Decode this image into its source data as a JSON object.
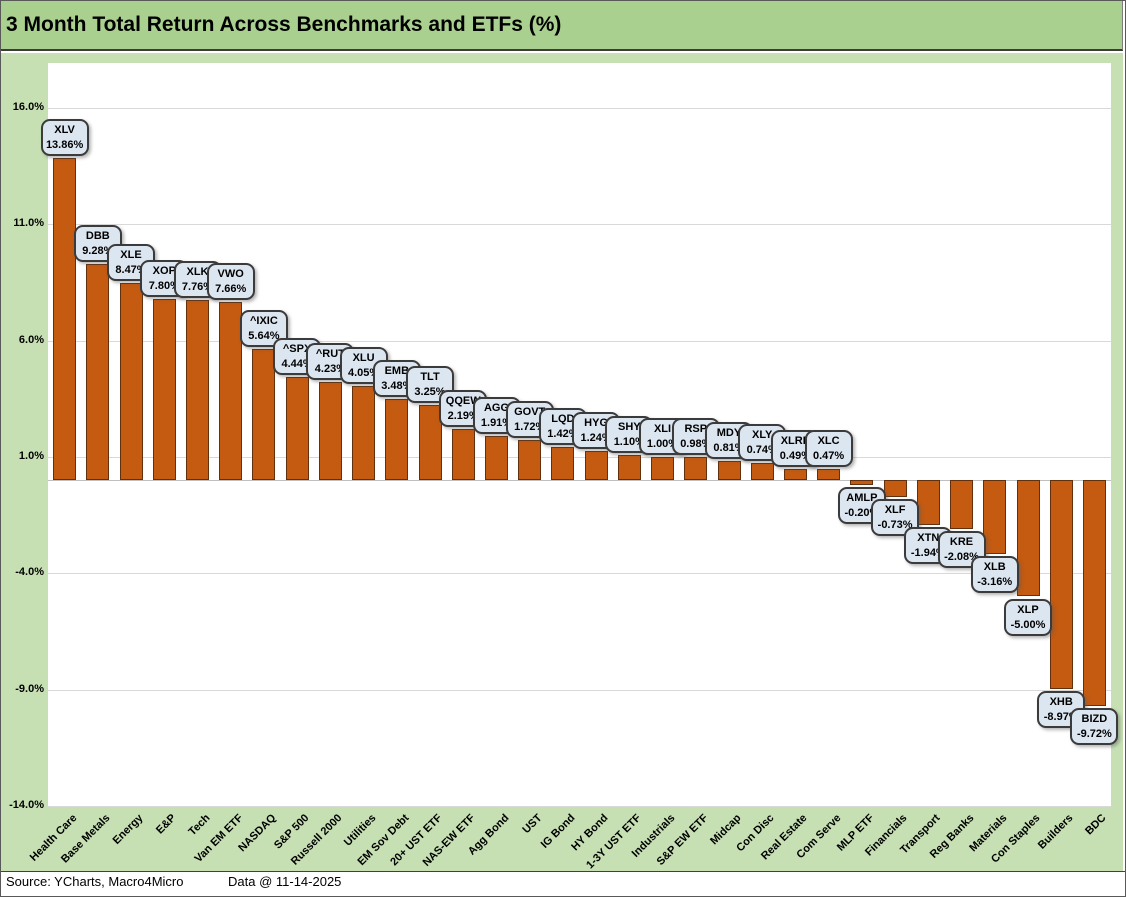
{
  "title": "3 Month Total Return Across Benchmarks and ETFs (%)",
  "footer": {
    "source": "Source: YCharts, Macro4Micro",
    "data_date": "Data @ 11-14-2025"
  },
  "colors": {
    "title_bar_bg": "#A9D08E",
    "chart_bg": "#C6E0B4",
    "plot_bg": "#FFFFFF",
    "bar_fill": "#C55A11",
    "bar_border": "#63300E",
    "callout_fill": "#DCE6F1",
    "callout_border": "#3B3B3B",
    "gridline": "#D9D9D9"
  },
  "chart_data": {
    "type": "bar",
    "title": "3 Month Total Return Across Benchmarks and ETFs (%)",
    "xlabel": "",
    "ylabel": "",
    "ylim": [
      -14,
      17.93
    ],
    "grid": true,
    "legend": "none",
    "yticks": [
      {
        "label": "16.0%",
        "value": 16
      },
      {
        "label": "11.0%",
        "value": 11
      },
      {
        "label": "6.0%",
        "value": 6
      },
      {
        "label": "1.0%",
        "value": 1
      },
      {
        "label": "-4.0%",
        "value": -4
      },
      {
        "label": "-9.0%",
        "value": -9
      },
      {
        "label": "-14.0%",
        "value": -14
      }
    ],
    "categories": [
      "Health Care",
      "Base Metals",
      "Energy",
      "E&P",
      "Tech",
      "Van EM ETF",
      "NASDAQ",
      "S&P 500",
      "Russell 2000",
      "Utilities",
      "EM Sov Debt",
      "20+ UST ETF",
      "NAS-EW ETF",
      "Agg Bond",
      "UST",
      "IG Bond",
      "HY Bond",
      "1-3Y UST ETF",
      "Industrials",
      "S&P EW ETF",
      "Midcap",
      "Con Disc",
      "Real Estate",
      "Com Serve",
      "MLP ETF",
      "Financials",
      "Transport",
      "Reg Banks",
      "Materials",
      "Con Staples",
      "Builders",
      "BDC"
    ],
    "points": [
      {
        "category": "Health Care",
        "ticker": "XLV",
        "value": 13.86,
        "label": "13.86%"
      },
      {
        "category": "Base Metals",
        "ticker": "DBB",
        "value": 9.28,
        "label": "9.28%"
      },
      {
        "category": "Energy",
        "ticker": "XLE",
        "value": 8.47,
        "label": "8.47%"
      },
      {
        "category": "E&P",
        "ticker": "XOP",
        "value": 7.8,
        "label": "7.80%"
      },
      {
        "category": "Tech",
        "ticker": "XLK",
        "value": 7.76,
        "label": "7.76%"
      },
      {
        "category": "Van EM ETF",
        "ticker": "VWO",
        "value": 7.66,
        "label": "7.66%"
      },
      {
        "category": "NASDAQ",
        "ticker": "^IXIC",
        "value": 5.64,
        "label": "5.64%"
      },
      {
        "category": "S&P 500",
        "ticker": "^SPX",
        "value": 4.44,
        "label": "4.44%"
      },
      {
        "category": "Russell 2000",
        "ticker": "^RUT",
        "value": 4.23,
        "label": "4.23%"
      },
      {
        "category": "Utilities",
        "ticker": "XLU",
        "value": 4.05,
        "label": "4.05%"
      },
      {
        "category": "EM Sov Debt",
        "ticker": "EMB",
        "value": 3.48,
        "label": "3.48%"
      },
      {
        "category": "20+ UST ETF",
        "ticker": "TLT",
        "value": 3.25,
        "label": "3.25%"
      },
      {
        "category": "NAS-EW ETF",
        "ticker": "QQEW",
        "value": 2.19,
        "label": "2.19%"
      },
      {
        "category": "Agg Bond",
        "ticker": "AGG",
        "value": 1.91,
        "label": "1.91%"
      },
      {
        "category": "UST",
        "ticker": "GOVT",
        "value": 1.72,
        "label": "1.72%"
      },
      {
        "category": "IG Bond",
        "ticker": "LQD",
        "value": 1.42,
        "label": "1.42%"
      },
      {
        "category": "HY Bond",
        "ticker": "HYG",
        "value": 1.24,
        "label": "1.24%"
      },
      {
        "category": "1-3Y UST ETF",
        "ticker": "SHY",
        "value": 1.1,
        "label": "1.10%"
      },
      {
        "category": "Industrials",
        "ticker": "XLI",
        "value": 1.0,
        "label": "1.00%"
      },
      {
        "category": "S&P EW ETF",
        "ticker": "RSP",
        "value": 0.98,
        "label": "0.98%"
      },
      {
        "category": "Midcap",
        "ticker": "MDY",
        "value": 0.81,
        "label": "0.81%"
      },
      {
        "category": "Con Disc",
        "ticker": "XLY",
        "value": 0.74,
        "label": "0.74%"
      },
      {
        "category": "Real Estate",
        "ticker": "XLRE",
        "value": 0.49,
        "label": "0.49%"
      },
      {
        "category": "Com Serve",
        "ticker": "XLC",
        "value": 0.47,
        "label": "0.47%"
      },
      {
        "category": "MLP ETF",
        "ticker": "AMLP",
        "value": -0.2,
        "label": "-0.20%"
      },
      {
        "category": "Financials",
        "ticker": "XLF",
        "value": -0.73,
        "label": "-0.73%"
      },
      {
        "category": "Transport",
        "ticker": "XTN",
        "value": -1.94,
        "label": "-1.94%"
      },
      {
        "category": "Reg Banks",
        "ticker": "KRE",
        "value": -2.08,
        "label": "-2.08%"
      },
      {
        "category": "Materials",
        "ticker": "XLB",
        "value": -3.16,
        "label": "-3.16%"
      },
      {
        "category": "Con Staples",
        "ticker": "XLP",
        "value": -5.0,
        "label": "-5.00%"
      },
      {
        "category": "Builders",
        "ticker": "XHB",
        "value": -8.97,
        "label": "-8.97%"
      },
      {
        "category": "BDC",
        "ticker": "BIZD",
        "value": -9.72,
        "label": "-9.72%"
      }
    ]
  }
}
